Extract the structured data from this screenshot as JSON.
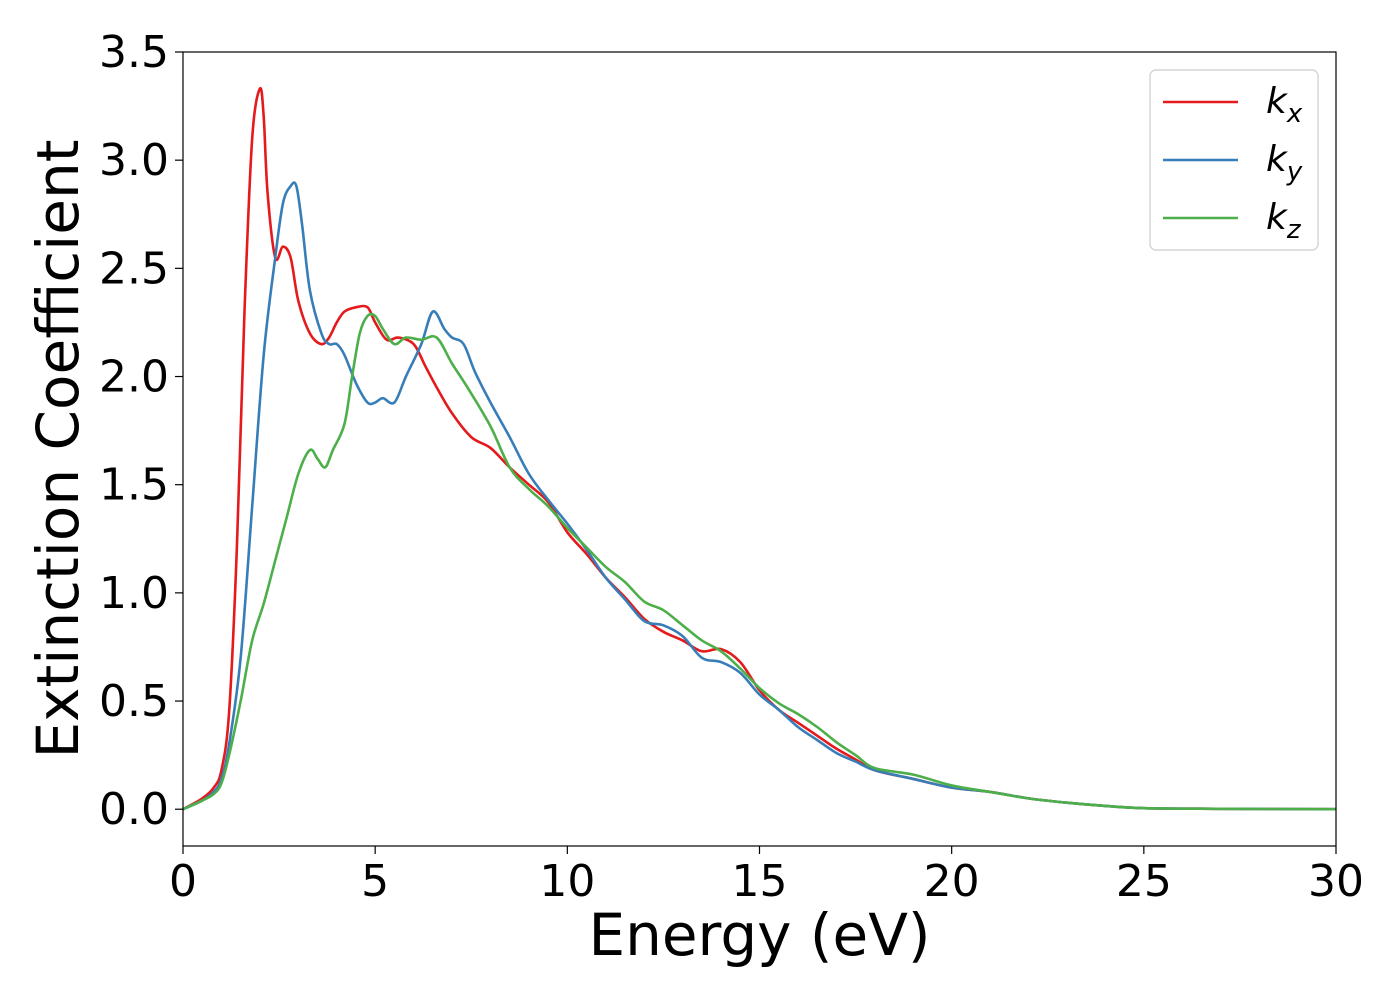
{
  "chart_data": {
    "type": "line",
    "xlabel": "Energy (eV)",
    "ylabel": "Extinction Coefficient",
    "xlim": [
      0,
      30
    ],
    "ylim": [
      -0.17,
      3.5
    ],
    "xticks": [
      0,
      5,
      10,
      15,
      20,
      25,
      30
    ],
    "xtick_labels": [
      "0",
      "5",
      "10",
      "15",
      "20",
      "25",
      "30"
    ],
    "yticks": [
      0.0,
      0.5,
      1.0,
      1.5,
      2.0,
      2.5,
      3.0,
      3.5
    ],
    "ytick_labels": [
      "0.0",
      "0.5",
      "1.0",
      "1.5",
      "2.0",
      "2.5",
      "3.0",
      "3.5"
    ],
    "grid": false,
    "legend_position": "top-right",
    "series": [
      {
        "name": "k",
        "subscript": "x",
        "color": "#e41a1c",
        "x": [
          0,
          0.5,
          0.8,
          1.0,
          1.2,
          1.4,
          1.6,
          1.8,
          2.0,
          2.1,
          2.2,
          2.4,
          2.6,
          2.8,
          3.0,
          3.3,
          3.6,
          3.8,
          4.0,
          4.2,
          4.5,
          4.8,
          5.0,
          5.3,
          5.6,
          6.0,
          6.3,
          6.6,
          7.0,
          7.5,
          8.0,
          8.5,
          9.0,
          9.5,
          10.0,
          10.5,
          11.0,
          11.5,
          12.0,
          12.5,
          13.0,
          13.5,
          14.0,
          14.5,
          15.0,
          15.5,
          16.0,
          16.5,
          17.0,
          17.5,
          18.0,
          19.0,
          20.0,
          21.0,
          22.0,
          23.0,
          24.0,
          25.0,
          27.0,
          30.0
        ],
        "y": [
          0,
          0.05,
          0.1,
          0.18,
          0.45,
          1.2,
          2.3,
          3.1,
          3.33,
          3.2,
          2.85,
          2.55,
          2.6,
          2.55,
          2.35,
          2.2,
          2.15,
          2.18,
          2.25,
          2.3,
          2.32,
          2.32,
          2.25,
          2.17,
          2.18,
          2.15,
          2.05,
          1.95,
          1.83,
          1.72,
          1.67,
          1.58,
          1.5,
          1.42,
          1.28,
          1.18,
          1.07,
          0.98,
          0.88,
          0.82,
          0.78,
          0.73,
          0.74,
          0.68,
          0.55,
          0.46,
          0.4,
          0.34,
          0.28,
          0.23,
          0.18,
          0.14,
          0.1,
          0.08,
          0.05,
          0.03,
          0.015,
          0.005,
          0.002,
          0.0
        ]
      },
      {
        "name": "k",
        "subscript": "y",
        "color": "#377eb8",
        "x": [
          0,
          0.5,
          0.8,
          1.0,
          1.2,
          1.5,
          1.8,
          2.1,
          2.4,
          2.6,
          2.8,
          2.95,
          3.1,
          3.3,
          3.6,
          3.8,
          4.0,
          4.2,
          4.5,
          4.8,
          5.0,
          5.2,
          5.5,
          5.8,
          6.2,
          6.5,
          6.8,
          7.0,
          7.3,
          7.6,
          8.0,
          8.5,
          9.0,
          9.5,
          10.0,
          10.5,
          11.0,
          11.5,
          12.0,
          12.5,
          13.0,
          13.5,
          14.0,
          14.5,
          15.0,
          15.5,
          16.0,
          16.5,
          17.0,
          17.5,
          18.0,
          19.0,
          20.0,
          21.0,
          22.0,
          23.0,
          24.0,
          25.0,
          27.0,
          30.0
        ],
        "y": [
          0,
          0.04,
          0.08,
          0.14,
          0.3,
          0.7,
          1.4,
          2.1,
          2.55,
          2.8,
          2.88,
          2.88,
          2.7,
          2.4,
          2.2,
          2.15,
          2.15,
          2.1,
          1.97,
          1.88,
          1.88,
          1.9,
          1.88,
          2.0,
          2.15,
          2.3,
          2.22,
          2.18,
          2.15,
          2.02,
          1.88,
          1.72,
          1.55,
          1.43,
          1.32,
          1.2,
          1.07,
          0.97,
          0.87,
          0.85,
          0.8,
          0.7,
          0.68,
          0.63,
          0.53,
          0.46,
          0.38,
          0.32,
          0.26,
          0.22,
          0.18,
          0.14,
          0.1,
          0.08,
          0.05,
          0.03,
          0.015,
          0.005,
          0.002,
          0.0
        ]
      },
      {
        "name": "k",
        "subscript": "z",
        "color": "#4daf4a",
        "x": [
          0,
          0.5,
          0.8,
          1.0,
          1.2,
          1.5,
          1.8,
          2.1,
          2.4,
          2.7,
          3.0,
          3.3,
          3.5,
          3.7,
          3.9,
          4.2,
          4.4,
          4.6,
          4.8,
          5.0,
          5.2,
          5.5,
          5.8,
          6.2,
          6.6,
          7.0,
          7.4,
          8.0,
          8.5,
          9.0,
          9.5,
          10.0,
          10.5,
          11.0,
          11.5,
          12.0,
          12.5,
          13.0,
          13.5,
          14.0,
          14.5,
          15.0,
          15.5,
          16.0,
          16.5,
          17.0,
          17.5,
          18.0,
          19.0,
          20.0,
          21.0,
          22.0,
          23.0,
          24.0,
          25.0,
          27.0,
          30.0
        ],
        "y": [
          0,
          0.04,
          0.07,
          0.12,
          0.25,
          0.5,
          0.78,
          0.95,
          1.15,
          1.35,
          1.55,
          1.66,
          1.62,
          1.58,
          1.66,
          1.78,
          2.0,
          2.2,
          2.28,
          2.28,
          2.22,
          2.15,
          2.18,
          2.17,
          2.18,
          2.06,
          1.95,
          1.77,
          1.58,
          1.48,
          1.4,
          1.3,
          1.21,
          1.12,
          1.05,
          0.96,
          0.92,
          0.85,
          0.78,
          0.73,
          0.65,
          0.56,
          0.49,
          0.44,
          0.38,
          0.31,
          0.25,
          0.19,
          0.16,
          0.11,
          0.08,
          0.05,
          0.03,
          0.015,
          0.005,
          0.002,
          0.0
        ]
      }
    ]
  }
}
